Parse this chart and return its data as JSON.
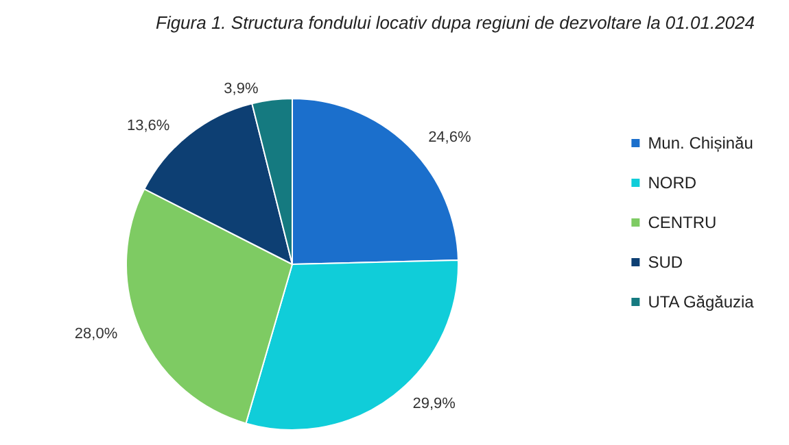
{
  "chart_data": {
    "type": "pie",
    "title": "Figura 1. Structura fondului locativ dupa regiuni de dezvoltare la 01.01.2024",
    "categories": [
      "Mun. Chișinău",
      "NORD",
      "CENTRU",
      "SUD",
      "UTA Găgăuzia"
    ],
    "values": [
      24.6,
      29.9,
      28.0,
      13.6,
      3.9
    ],
    "colors": [
      "#1b6fcc",
      "#10cdd9",
      "#7ecb63",
      "#0d3f73",
      "#157a80"
    ],
    "value_labels": [
      "24,6%",
      "29,9%",
      "28,0%",
      "13,6%",
      "3,9%"
    ],
    "legend": "right"
  }
}
